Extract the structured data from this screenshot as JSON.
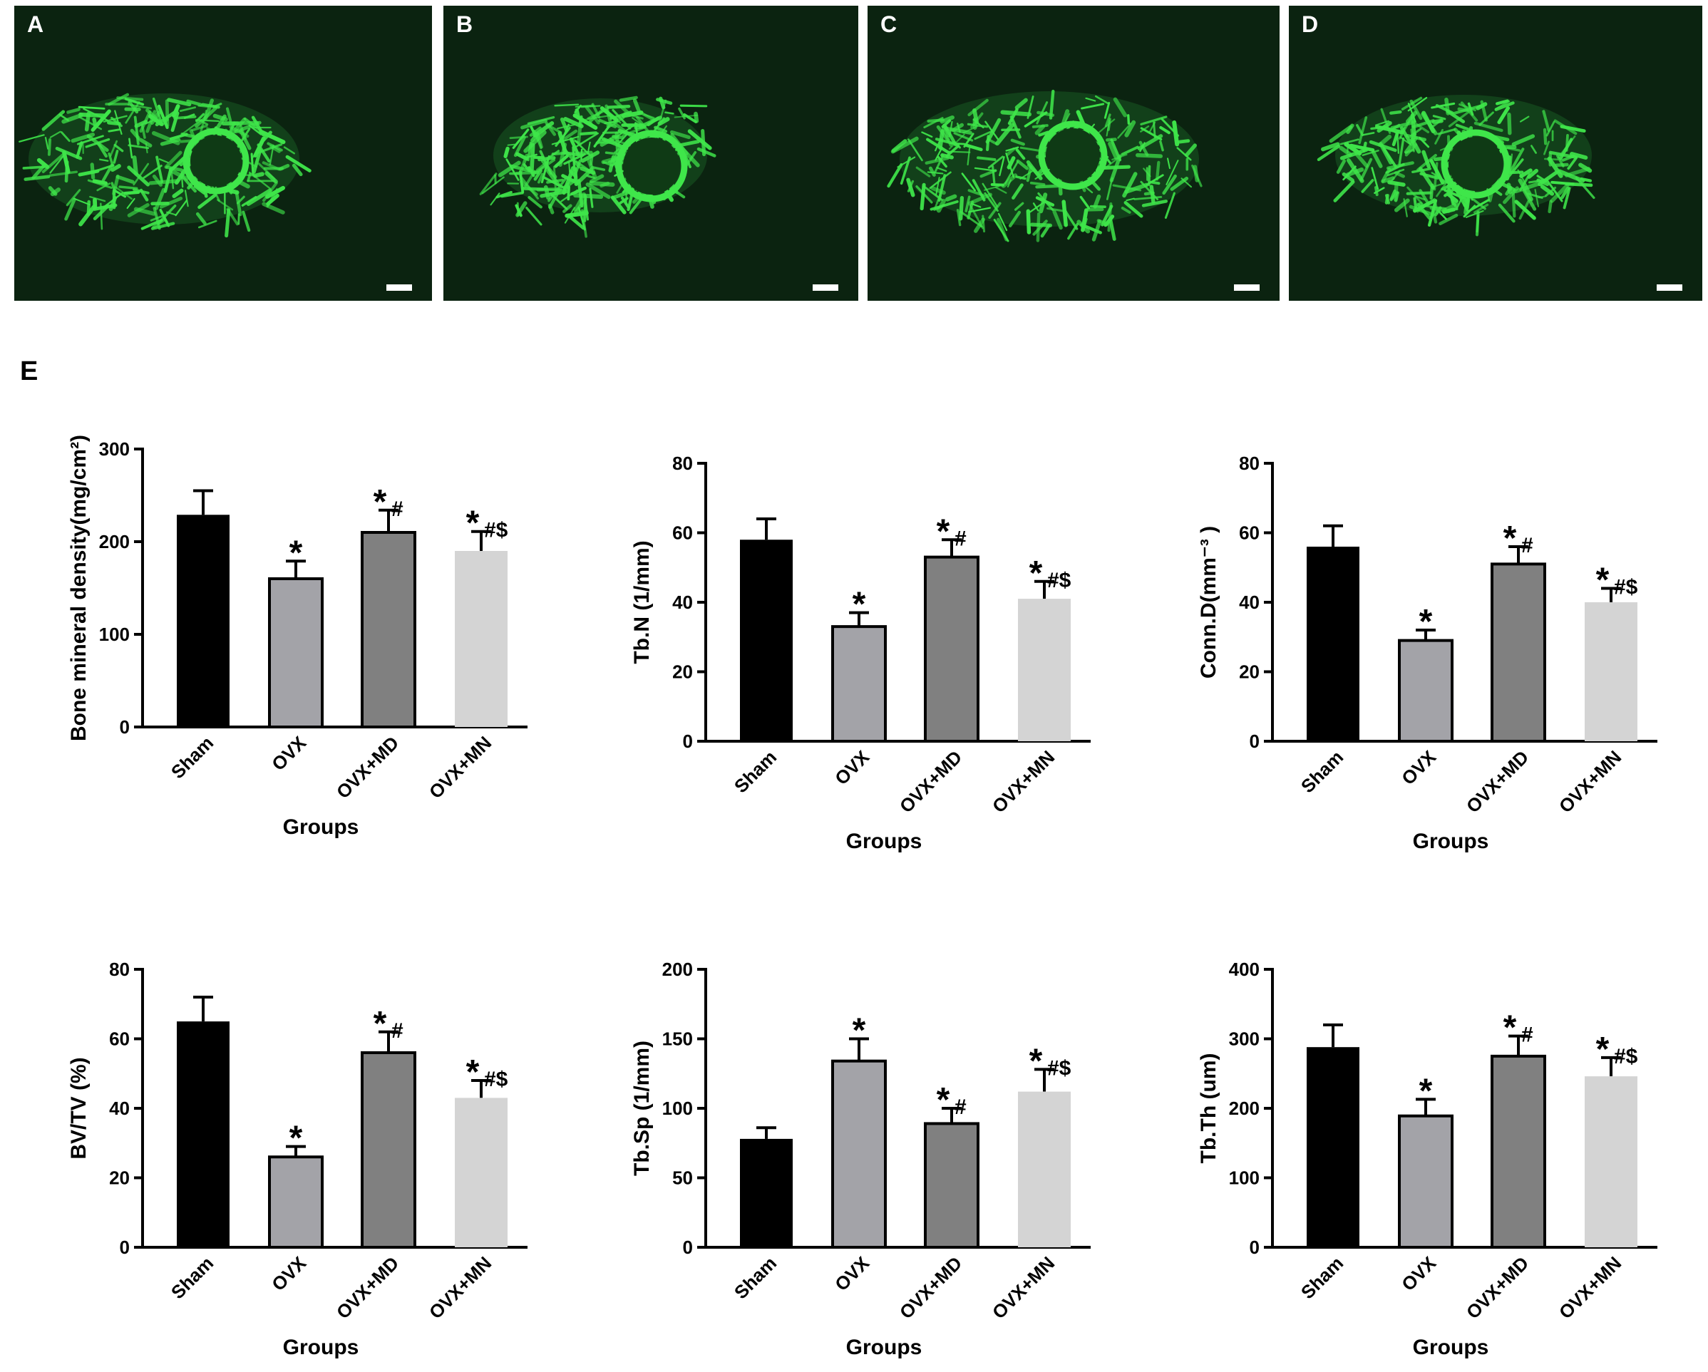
{
  "panels": [
    {
      "letter": "A"
    },
    {
      "letter": "B"
    },
    {
      "letter": "C"
    },
    {
      "letter": "D"
    }
  ],
  "section_letter": "E",
  "colors": {
    "panel_bg": "#0b2310",
    "bone": "#3fe64a",
    "sham": "#000000",
    "ovx": "#a3a3a8",
    "ovx_md": "#808080",
    "ovx_mn": "#d4d4d4"
  },
  "chart_data": [
    {
      "type": "bar",
      "categories": [
        "Sham",
        "OVX",
        "OVX+MD",
        "OVX+MN"
      ],
      "values": [
        229,
        160,
        210,
        190
      ],
      "errors": [
        26,
        19,
        24,
        21
      ],
      "annotations": [
        "",
        "*",
        "*#",
        "*#$"
      ],
      "xlabel": "Groups",
      "ylabel": "Bone mineral density(mg/cm²)",
      "ylim": [
        0,
        300
      ],
      "yticks": [
        "0",
        "100",
        "200",
        "300"
      ]
    },
    {
      "type": "bar",
      "categories": [
        "Sham",
        "OVX",
        "OVX+MD",
        "OVX+MN"
      ],
      "values": [
        58,
        33,
        53,
        41
      ],
      "errors": [
        6,
        4,
        5,
        5
      ],
      "annotations": [
        "",
        "*",
        "*#",
        "*#$"
      ],
      "xlabel": "Groups",
      "ylabel": "Tb.N (1/mm)",
      "ylim": [
        0,
        80
      ],
      "yticks": [
        "0",
        "20",
        "40",
        "60",
        "80"
      ]
    },
    {
      "type": "bar",
      "categories": [
        "Sham",
        "OVX",
        "OVX+MD",
        "OVX+MN"
      ],
      "values": [
        56,
        29,
        51,
        40
      ],
      "errors": [
        6,
        3,
        5,
        4
      ],
      "annotations": [
        "",
        "*",
        "*#",
        "*#$"
      ],
      "xlabel": "Groups",
      "ylabel": "Conn.D(mm⁻³ )",
      "ylim": [
        0,
        80
      ],
      "yticks": [
        "0",
        "20",
        "40",
        "60",
        "80"
      ]
    },
    {
      "type": "bar",
      "categories": [
        "Sham",
        "OVX",
        "OVX+MD",
        "OVX+MN"
      ],
      "values": [
        65,
        26,
        56,
        43
      ],
      "errors": [
        7,
        3,
        6,
        5
      ],
      "annotations": [
        "",
        "*",
        "*#",
        "*#$"
      ],
      "xlabel": "Groups",
      "ylabel": "BV/TV (%)",
      "ylim": [
        0,
        80
      ],
      "yticks": [
        "0",
        "20",
        "40",
        "60",
        "80"
      ]
    },
    {
      "type": "bar",
      "categories": [
        "Sham",
        "OVX",
        "OVX+MD",
        "OVX+MN"
      ],
      "values": [
        78,
        134,
        89,
        112
      ],
      "errors": [
        8,
        16,
        11,
        16
      ],
      "annotations": [
        "",
        "*",
        "*#",
        "*#$"
      ],
      "xlabel": "Groups",
      "ylabel": "Tb.Sp (1/mm)",
      "ylim": [
        0,
        200
      ],
      "yticks": [
        "0",
        "50",
        "100",
        "150",
        "200"
      ]
    },
    {
      "type": "bar",
      "categories": [
        "Sham",
        "OVX",
        "OVX+MD",
        "OVX+MN"
      ],
      "values": [
        288,
        189,
        275,
        246
      ],
      "errors": [
        32,
        24,
        29,
        27
      ],
      "annotations": [
        "",
        "*",
        "*#",
        "*#$"
      ],
      "xlabel": "Groups",
      "ylabel": "Tb.Th (um)",
      "ylim": [
        0,
        400
      ],
      "yticks": [
        "0",
        "100",
        "200",
        "300",
        "400"
      ]
    }
  ]
}
